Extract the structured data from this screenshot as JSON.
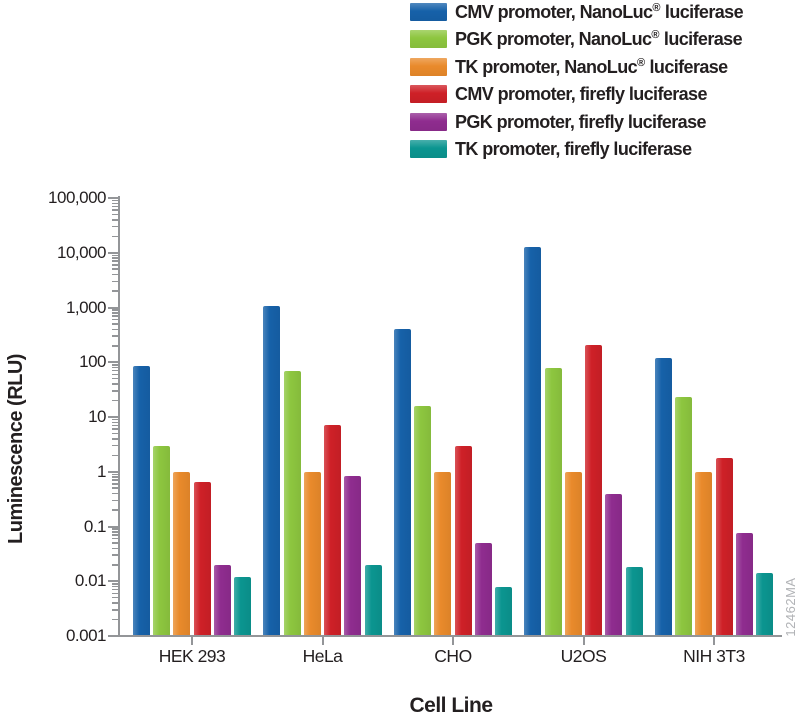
{
  "watermark": "12462MA",
  "colors": {
    "axis": "#939598",
    "text": "#231F20",
    "watermark": "#B1B3B6"
  },
  "chart_data": {
    "type": "bar",
    "scale": "log-y",
    "title": "",
    "xlabel": "Cell Line",
    "ylabel": "Luminescence (RLU)",
    "ylim": [
      0.001,
      100000
    ],
    "grid": false,
    "legend_position": "top-right",
    "categories": [
      "HEK 293",
      "HeLa",
      "CHO",
      "U2OS",
      "NIH 3T3"
    ],
    "yticks": [
      {
        "label": "100,000",
        "value": 100000
      },
      {
        "label": "10,000",
        "value": 10000
      },
      {
        "label": "1,000",
        "value": 1000
      },
      {
        "label": "100",
        "value": 100
      },
      {
        "label": "10",
        "value": 10
      },
      {
        "label": "1",
        "value": 1
      },
      {
        "label": "0.1",
        "value": 0.1
      },
      {
        "label": "0.01",
        "value": 0.01
      },
      {
        "label": "0.001",
        "value": 0.001
      }
    ],
    "series": [
      {
        "name": "CMV promoter, NanoLuc® luciferase",
        "color": "#1661A9",
        "values": [
          85,
          1050,
          400,
          13000,
          120
        ]
      },
      {
        "name": "PGK promoter, NanoLuc® luciferase",
        "color": "#8DC63F",
        "values": [
          3,
          70,
          16,
          80,
          23
        ]
      },
      {
        "name": "TK promoter, NanoLuc® luciferase",
        "color": "#E98A2B",
        "values": [
          1,
          1,
          1,
          1,
          1
        ]
      },
      {
        "name": "CMV promoter, firefly luciferase",
        "color": "#CE2027",
        "values": [
          0.65,
          7,
          3,
          210,
          1.8
        ]
      },
      {
        "name": "PGK promoter, firefly luciferase",
        "color": "#8F2C8F",
        "values": [
          0.02,
          0.85,
          0.05,
          0.4,
          0.075
        ]
      },
      {
        "name": "TK promoter, firefly luciferase",
        "color": "#0B9590",
        "values": [
          0.012,
          0.02,
          0.008,
          0.018,
          0.014
        ]
      }
    ]
  }
}
